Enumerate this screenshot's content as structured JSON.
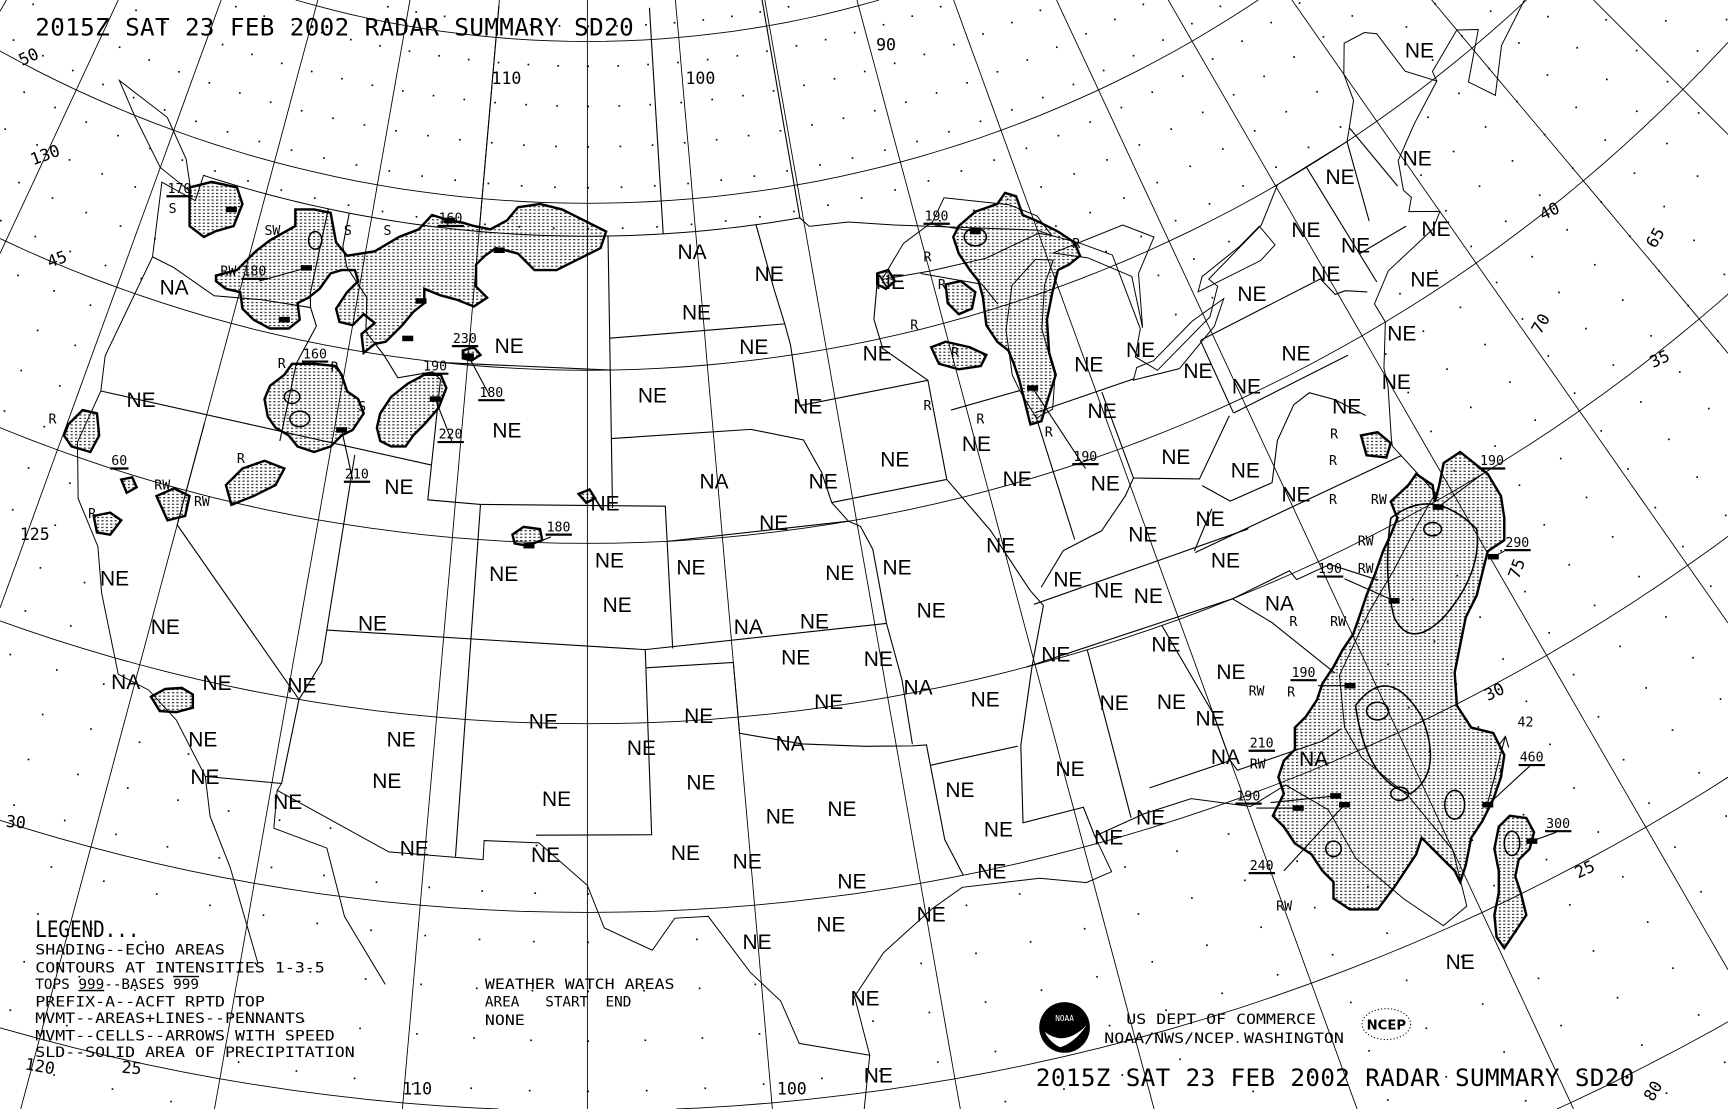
{
  "title_top": "2015Z SAT 23 FEB 2002 RADAR SUMMARY SD20",
  "title_bottom": "2015Z SAT 23 FEB 2002 RADAR SUMMARY SD20",
  "legend": {
    "heading": "LEGEND...",
    "line1": "SHADING--ECHO AREAS",
    "line2": "CONTOURS AT INTENSITIES 1-3-5",
    "line3_tops": "TOPS ",
    "line3_tops_sample": "999",
    "line3_bases": "--BASES ",
    "line3_bases_sample": "999",
    "line4": "PREFIX-A--ACFT RPTD TOP",
    "line5": "MVMT--AREAS+LINES--PENNANTS",
    "line6": "MVMT--CELLS--ARROWS WITH SPEED",
    "line7": "SLD--SOLID AREA OF PRECIPITATION"
  },
  "watch": {
    "heading": "WEATHER WATCH AREAS",
    "columns": "AREA   START  END",
    "value": "NONE"
  },
  "agency": {
    "line1": "US DEPT OF COMMERCE",
    "line2": "NOAA/NWS/NCEP WASHINGTON",
    "noaa_logo": "NOAA",
    "ncep_logo": "NCEP"
  },
  "grid_labels": [
    "50",
    "45",
    "130",
    "125",
    "120",
    "25",
    "30",
    "110",
    "100",
    "90",
    "110",
    "100",
    "40",
    "35",
    "30",
    "25",
    "65",
    "70",
    "75",
    "80"
  ],
  "area_labels": [
    "NE",
    "NE",
    "NE",
    "NE",
    "NE",
    "NE",
    "NA",
    "NE",
    "NE",
    "NE",
    "NA",
    "NE",
    "NE",
    "NE",
    "NE",
    "NE",
    "NE",
    "NE",
    "NE",
    "NE",
    "NE",
    "NE",
    "NE",
    "NE",
    "NE",
    "NE",
    "NE",
    "NE",
    "NE",
    "NE",
    "NE",
    "NE",
    "NE",
    "NE",
    "NA",
    "NE",
    "NE",
    "NE",
    "NE",
    "NE",
    "NE",
    "NE",
    "NE",
    "NE",
    "NE",
    "NE",
    "NE",
    "NE",
    "NE",
    "NE",
    "NE",
    "NE",
    "NE",
    "NE",
    "NE",
    "NE",
    "NE",
    "NE",
    "NE",
    "NA",
    "NE",
    "NE",
    "NE",
    "NE",
    "NE",
    "NA",
    "NE",
    "NE",
    "NE",
    "NA",
    "NE",
    "NE",
    "NE",
    "NE",
    "NE",
    "NE",
    "NE",
    "NE",
    "NE",
    "NA",
    "NE",
    "NE",
    "NE",
    "NE",
    "NE",
    "NA",
    "NA",
    "NE",
    "NE",
    "NE",
    "NE",
    "NE",
    "NE",
    "NE",
    "NE",
    "NE",
    "NE",
    "NE",
    "NE",
    "NE",
    "NE",
    "NE",
    "NE",
    "NE",
    "NE",
    "NE",
    "NE",
    "NA"
  ],
  "echo_labels": [
    "170",
    "S",
    "SW",
    "S",
    "S",
    "160",
    "RW",
    "180",
    "160",
    "R",
    "R",
    "230",
    "180",
    "190",
    "220",
    "210",
    "S",
    "R",
    "RW",
    "RW",
    "R",
    "R",
    "60",
    "180",
    "190",
    "R",
    "R",
    "R",
    "R",
    "R",
    "R",
    "R",
    "R",
    "190",
    "190",
    "R",
    "R",
    "R",
    "RW",
    "RW",
    "290",
    "190",
    "RW",
    "R",
    "RW",
    "190",
    "R",
    "RW",
    "210",
    "RW",
    "42",
    "460",
    "190",
    "300",
    "240",
    "RW"
  ],
  "colors": {
    "background": "#ffffff",
    "ink": "#000000"
  }
}
